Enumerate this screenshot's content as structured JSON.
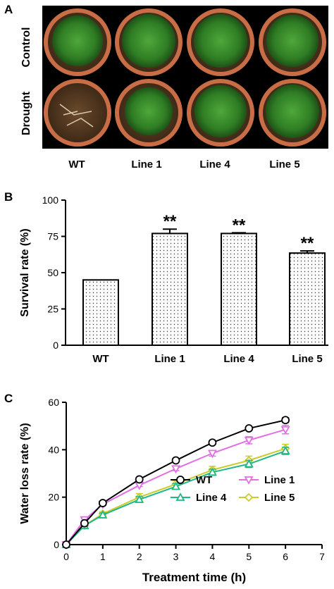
{
  "panel_a": {
    "letter": "A",
    "row_labels": [
      "Control",
      "Drought"
    ],
    "genotypes": [
      "WT",
      "Line 1",
      "Line 4",
      "Line 5"
    ]
  },
  "panel_b": {
    "letter": "B",
    "chart_data": {
      "type": "bar",
      "categories": [
        "WT",
        "Line 1",
        "Line 4",
        "Line 5"
      ],
      "values": [
        45,
        77,
        77,
        63.5
      ],
      "errors": [
        0,
        3,
        0.5,
        1.5
      ],
      "significance": [
        "",
        "**",
        "**",
        "**"
      ],
      "ylabel": "Survival rate (%)",
      "ylim": [
        0,
        100
      ],
      "yticks": [
        0,
        25,
        50,
        75,
        100
      ],
      "bar_fill": "dotted",
      "grid": false
    }
  },
  "panel_c": {
    "letter": "C",
    "chart_data": {
      "type": "line",
      "xlabel": "Treatment time (h)",
      "ylabel": "Water loss rate (%)",
      "xlim": [
        0,
        7
      ],
      "ylim": [
        0,
        60
      ],
      "xticks": [
        0,
        1,
        2,
        3,
        4,
        5,
        6,
        7
      ],
      "yticks": [
        0,
        20,
        40,
        60
      ],
      "x": [
        0,
        0.5,
        1,
        2,
        3,
        4,
        5,
        6
      ],
      "legend_position": "bottom-right",
      "series": [
        {
          "name": "WT",
          "marker": "circle",
          "color": "#000000",
          "values": [
            0,
            9,
            17.5,
            27.5,
            35.5,
            43,
            49,
            52.5
          ],
          "errors": [
            0,
            0.5,
            0.5,
            0.5,
            0.5,
            0.5,
            0.5,
            1
          ]
        },
        {
          "name": "Line 1",
          "marker": "triangle-down",
          "color": "#e36fe6",
          "values": [
            0,
            10.5,
            17,
            25,
            32,
            38.5,
            44,
            48.5
          ],
          "errors": [
            0,
            0.5,
            0.5,
            0.5,
            0.8,
            1.2,
            1.5,
            1.8
          ]
        },
        {
          "name": "Line 4",
          "marker": "triangle-up",
          "color": "#1fb887",
          "values": [
            0,
            8,
            12.5,
            19,
            24.5,
            30.5,
            34,
            39.5
          ],
          "errors": [
            0,
            0.5,
            0.8,
            1.2,
            1.2,
            1.3,
            1.5,
            1.5
          ]
        },
        {
          "name": "Line 5",
          "marker": "diamond",
          "color": "#c9cc2a",
          "values": [
            0,
            8,
            13,
            20,
            25.5,
            31.5,
            35.5,
            40.5
          ],
          "errors": [
            0,
            0.5,
            0.8,
            1.5,
            1.5,
            1.5,
            1.8,
            1.8
          ]
        }
      ]
    }
  }
}
